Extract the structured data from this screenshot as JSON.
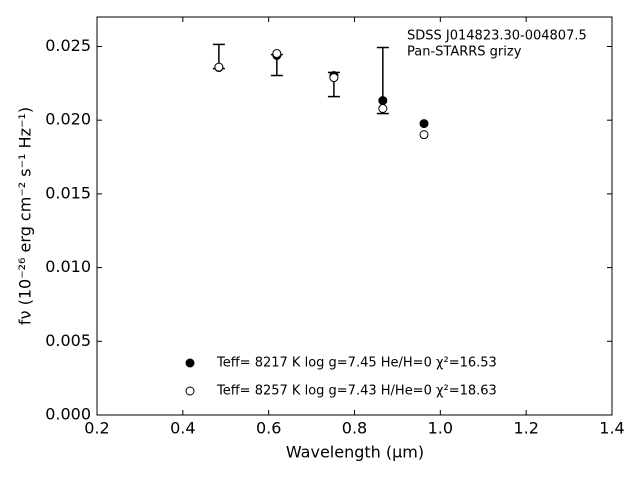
{
  "chart_data": {
    "type": "scatter",
    "xlabel": "Wavelength (μm)",
    "ylabel": "fν (10⁻²⁶ erg cm⁻² s⁻¹ Hz⁻¹)",
    "annotations": [
      "SDSS J014823.30-004807.5",
      "Pan-STARRS grizy"
    ],
    "x": [
      0.484,
      0.619,
      0.752,
      0.866,
      0.962
    ],
    "series": [
      {
        "color": "#000000",
        "marker": "none",
        "values": [
          0.02432,
          0.02374,
          0.02242,
          0.02269,
          null
        ],
        "errors": [
          0.00082,
          0.00071,
          0.00082,
          0.00224,
          null
        ]
      },
      {
        "name": "Teff=  8217 K  log g=7.45  He/H=0  χ²=16.53",
        "color": "#000000",
        "marker": "filled",
        "values": [
          0.02357,
          0.02439,
          0.02303,
          0.02133,
          0.01977
        ]
      },
      {
        "name": "Teff=  8257 K  log g=7.43  H/He=0  χ²=18.63",
        "color": "#000000",
        "marker": "open",
        "values": [
          0.0236,
          0.02452,
          0.02289,
          0.02079,
          0.01902
        ]
      }
    ],
    "xlim": [
      0.2,
      1.4
    ],
    "xticks": [
      0.2,
      0.4,
      0.6,
      0.8,
      {
        "value": 1.0,
        "label": "1.0"
      },
      1.2,
      1.4
    ],
    "ylim": [
      0,
      0.027
    ],
    "yticks": [
      {
        "value": 0,
        "label": "0.000"
      },
      {
        "value": 0.005,
        "label": "0.005"
      },
      {
        "value": 0.01,
        "label": "0.010"
      },
      {
        "value": 0.015,
        "label": "0.015"
      },
      {
        "value": 0.02,
        "label": "0.020"
      },
      {
        "value": 0.025,
        "label": "0.025"
      }
    ],
    "legend": "lower center",
    "grid": false
  }
}
